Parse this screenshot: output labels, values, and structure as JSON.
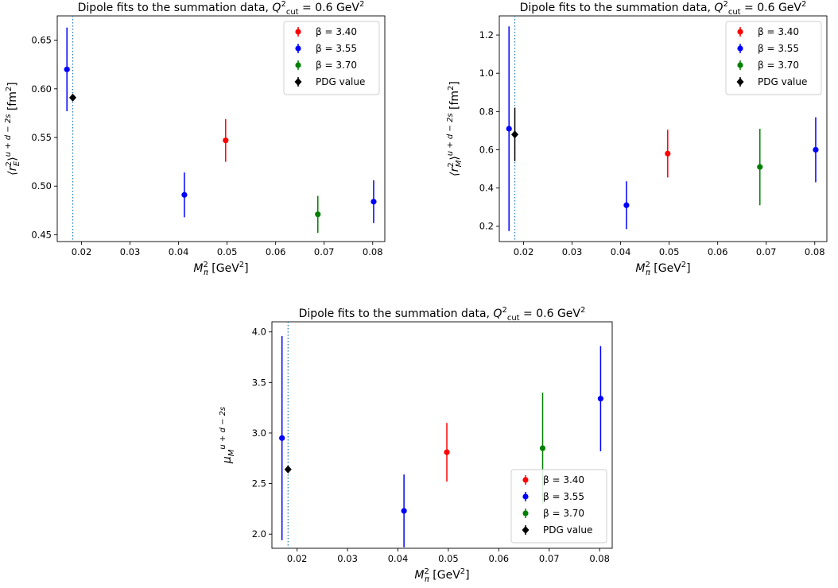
{
  "chart_data": [
    {
      "type": "scatter",
      "title": "Dipole fits to the summation data, Q²cut = 0.6 GeV²",
      "title_parts": {
        "main": "Dipole fits to the summation data, ",
        "q": "Q",
        "sup": "2",
        "sub": "cut",
        "rest": " = 0.6 GeV",
        "unit_sup": "2"
      },
      "xlabel": "M²π [GeV²]",
      "ylabel": "⟨r²E⟩u+d−2s [fm²]",
      "xlabel_parts": {
        "sym": "M",
        "sup": "2",
        "sub": "π",
        "unit": " [GeV",
        "unit_sup": "2",
        "close": "]"
      },
      "ylabel_parts": {
        "pre": "⟨r",
        "sup": "2",
        "sub": "E",
        "post": "⟩",
        "flavor": "u + d − 2s",
        "unit": " [fm",
        "unit_sup": "2",
        "close": "]"
      },
      "xlim": [
        0.015,
        0.0825
      ],
      "ylim": [
        0.443,
        0.675
      ],
      "xticks": [
        "0.02",
        "0.03",
        "0.04",
        "0.05",
        "0.06",
        "0.07",
        "0.08"
      ],
      "yticks": [
        "0.45",
        "0.50",
        "0.55",
        "0.60",
        "0.65"
      ],
      "vline_x": 0.0182,
      "legend_position": "upper right",
      "series": [
        {
          "name": "β = 3.40",
          "color": "#ff0000",
          "marker": "circle",
          "points": [
            {
              "x": 0.0497,
              "y": 0.547,
              "err": 0.022
            }
          ]
        },
        {
          "name": "β = 3.55",
          "color": "#0000ff",
          "marker": "circle",
          "points": [
            {
              "x": 0.017,
              "y": 0.62,
              "err": 0.043
            },
            {
              "x": 0.0412,
              "y": 0.491,
              "err": 0.023
            },
            {
              "x": 0.0802,
              "y": 0.484,
              "err": 0.022
            }
          ]
        },
        {
          "name": "β = 3.70",
          "color": "#008000",
          "marker": "circle",
          "points": [
            {
              "x": 0.0687,
              "y": 0.471,
              "err": 0.019
            }
          ]
        },
        {
          "name": "PDG value",
          "color": "#000000",
          "marker": "diamond",
          "points": [
            {
              "x": 0.0182,
              "y": 0.591,
              "err": 0.0
            }
          ]
        }
      ]
    },
    {
      "type": "scatter",
      "title": "Dipole fits to the summation data, Q²cut = 0.6 GeV²",
      "title_parts": {
        "main": "Dipole fits to the summation data, ",
        "q": "Q",
        "sup": "2",
        "sub": "cut",
        "rest": " = 0.6 GeV",
        "unit_sup": "2"
      },
      "xlabel": "M²π [GeV²]",
      "ylabel": "⟨r²M⟩u+d−2s [fm²]",
      "xlabel_parts": {
        "sym": "M",
        "sup": "2",
        "sub": "π",
        "unit": " [GeV",
        "unit_sup": "2",
        "close": "]"
      },
      "ylabel_parts": {
        "pre": "⟨r",
        "sup": "2",
        "sub": "M",
        "post": "⟩",
        "flavor": "u + d − 2s",
        "unit": " [fm",
        "unit_sup": "2",
        "close": "]"
      },
      "xlim": [
        0.015,
        0.0825
      ],
      "ylim": [
        0.12,
        1.3
      ],
      "xticks": [
        "0.02",
        "0.03",
        "0.04",
        "0.05",
        "0.06",
        "0.07",
        "0.08"
      ],
      "yticks": [
        "0.2",
        "0.4",
        "0.6",
        "0.8",
        "1.0",
        "1.2"
      ],
      "vline_x": 0.0182,
      "legend_position": "upper right",
      "series": [
        {
          "name": "β = 3.40",
          "color": "#ff0000",
          "marker": "circle",
          "points": [
            {
              "x": 0.0497,
              "y": 0.58,
              "err": 0.125
            }
          ]
        },
        {
          "name": "β = 3.55",
          "color": "#0000ff",
          "marker": "circle",
          "points": [
            {
              "x": 0.017,
              "y": 0.71,
              "err": 0.535
            },
            {
              "x": 0.0412,
              "y": 0.31,
              "err": 0.125
            },
            {
              "x": 0.0802,
              "y": 0.6,
              "err": 0.17
            }
          ]
        },
        {
          "name": "β = 3.70",
          "color": "#008000",
          "marker": "circle",
          "points": [
            {
              "x": 0.0687,
              "y": 0.51,
              "err": 0.2
            }
          ]
        },
        {
          "name": "PDG value",
          "color": "#000000",
          "marker": "diamond",
          "points": [
            {
              "x": 0.0182,
              "y": 0.68,
              "err": 0.14
            }
          ]
        }
      ]
    },
    {
      "type": "scatter",
      "title": "Dipole fits to the summation data, Q²cut = 0.6 GeV²",
      "title_parts": {
        "main": "Dipole fits to the summation data, ",
        "q": "Q",
        "sup": "2",
        "sub": "cut",
        "rest": " = 0.6 GeV",
        "unit_sup": "2"
      },
      "xlabel": "M²π [GeV²]",
      "ylabel": "μMu+d−2s",
      "xlabel_parts": {
        "sym": "M",
        "sup": "2",
        "sub": "π",
        "unit": " [GeV",
        "unit_sup": "2",
        "close": "]"
      },
      "ylabel_parts": {
        "pre": "μ",
        "sup": "",
        "sub": "M",
        "post": "",
        "flavor": "u + d − 2s",
        "unit": "",
        "unit_sup": "",
        "close": ""
      },
      "xlim": [
        0.015,
        0.0825
      ],
      "ylim": [
        1.86,
        4.1
      ],
      "xticks": [
        "0.02",
        "0.03",
        "0.04",
        "0.05",
        "0.06",
        "0.07",
        "0.08"
      ],
      "yticks": [
        "2.0",
        "2.5",
        "3.0",
        "3.5",
        "4.0"
      ],
      "vline_x": 0.0182,
      "legend_position": "lower right",
      "series": [
        {
          "name": "β = 3.40",
          "color": "#ff0000",
          "marker": "circle",
          "points": [
            {
              "x": 0.0497,
              "y": 2.81,
              "err": 0.29
            }
          ]
        },
        {
          "name": "β = 3.55",
          "color": "#0000ff",
          "marker": "circle",
          "points": [
            {
              "x": 0.017,
              "y": 2.95,
              "err": 1.01
            },
            {
              "x": 0.0412,
              "y": 2.23,
              "err": 0.36
            },
            {
              "x": 0.0802,
              "y": 3.34,
              "err": 0.52
            }
          ]
        },
        {
          "name": "β = 3.70",
          "color": "#008000",
          "marker": "circle",
          "points": [
            {
              "x": 0.0687,
              "y": 2.85,
              "err": 0.55
            }
          ]
        },
        {
          "name": "PDG value",
          "color": "#000000",
          "marker": "diamond",
          "points": [
            {
              "x": 0.0182,
              "y": 2.64,
              "err": 0.0
            }
          ]
        }
      ]
    }
  ]
}
